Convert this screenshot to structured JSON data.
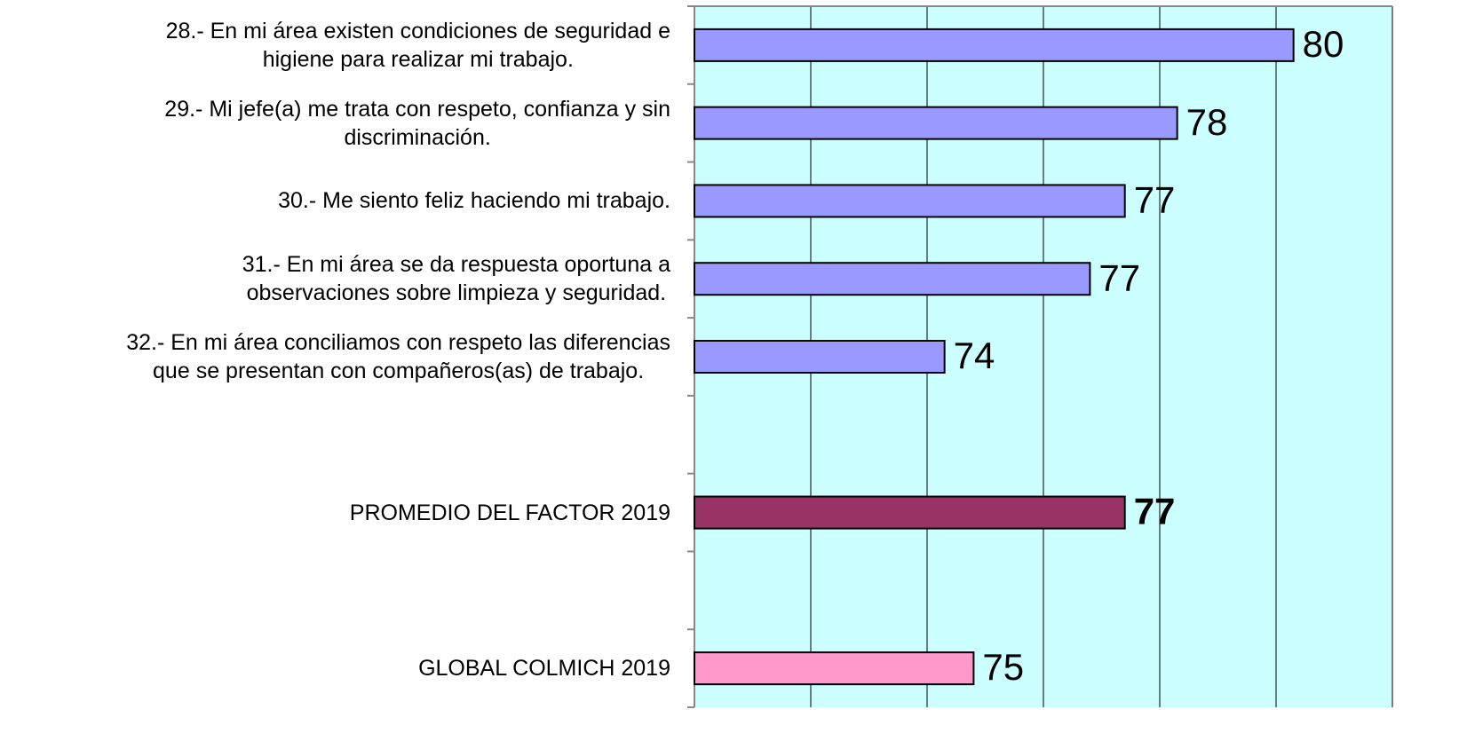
{
  "chart_data": {
    "type": "barh",
    "categories": [
      "28.- En mi área existen condiciones de seguridad e\nhigiene para realizar mi trabajo.",
      "29.- Mi jefe(a) me trata con respeto, confianza y sin\ndiscriminación.",
      "30.- Me siento feliz haciendo mi trabajo.",
      "31.- En mi área se da respuesta oportuna a\nobservaciones sobre limpieza y seguridad.",
      "32.- En mi área conciliamos con respeto las diferencias\nque se presentan con compañeros(as) de trabajo.",
      null,
      "PROMEDIO DEL FACTOR   2019",
      null,
      "GLOBAL COLMICH  2019"
    ],
    "values": [
      80.3,
      78.3,
      77.4,
      76.8,
      74.3,
      null,
      77.4,
      null,
      74.8
    ],
    "value_labels": [
      "80",
      "78",
      "77",
      "77",
      "74",
      null,
      "77",
      null,
      "75"
    ],
    "colors": [
      "#9999ff",
      "#9999ff",
      "#9999ff",
      "#9999ff",
      "#9999ff",
      null,
      "#993366",
      null,
      "#ff99cc"
    ],
    "xlim": [
      70,
      82
    ],
    "xticks": [
      70,
      72,
      74,
      76,
      78,
      80,
      82
    ],
    "grid": true
  }
}
